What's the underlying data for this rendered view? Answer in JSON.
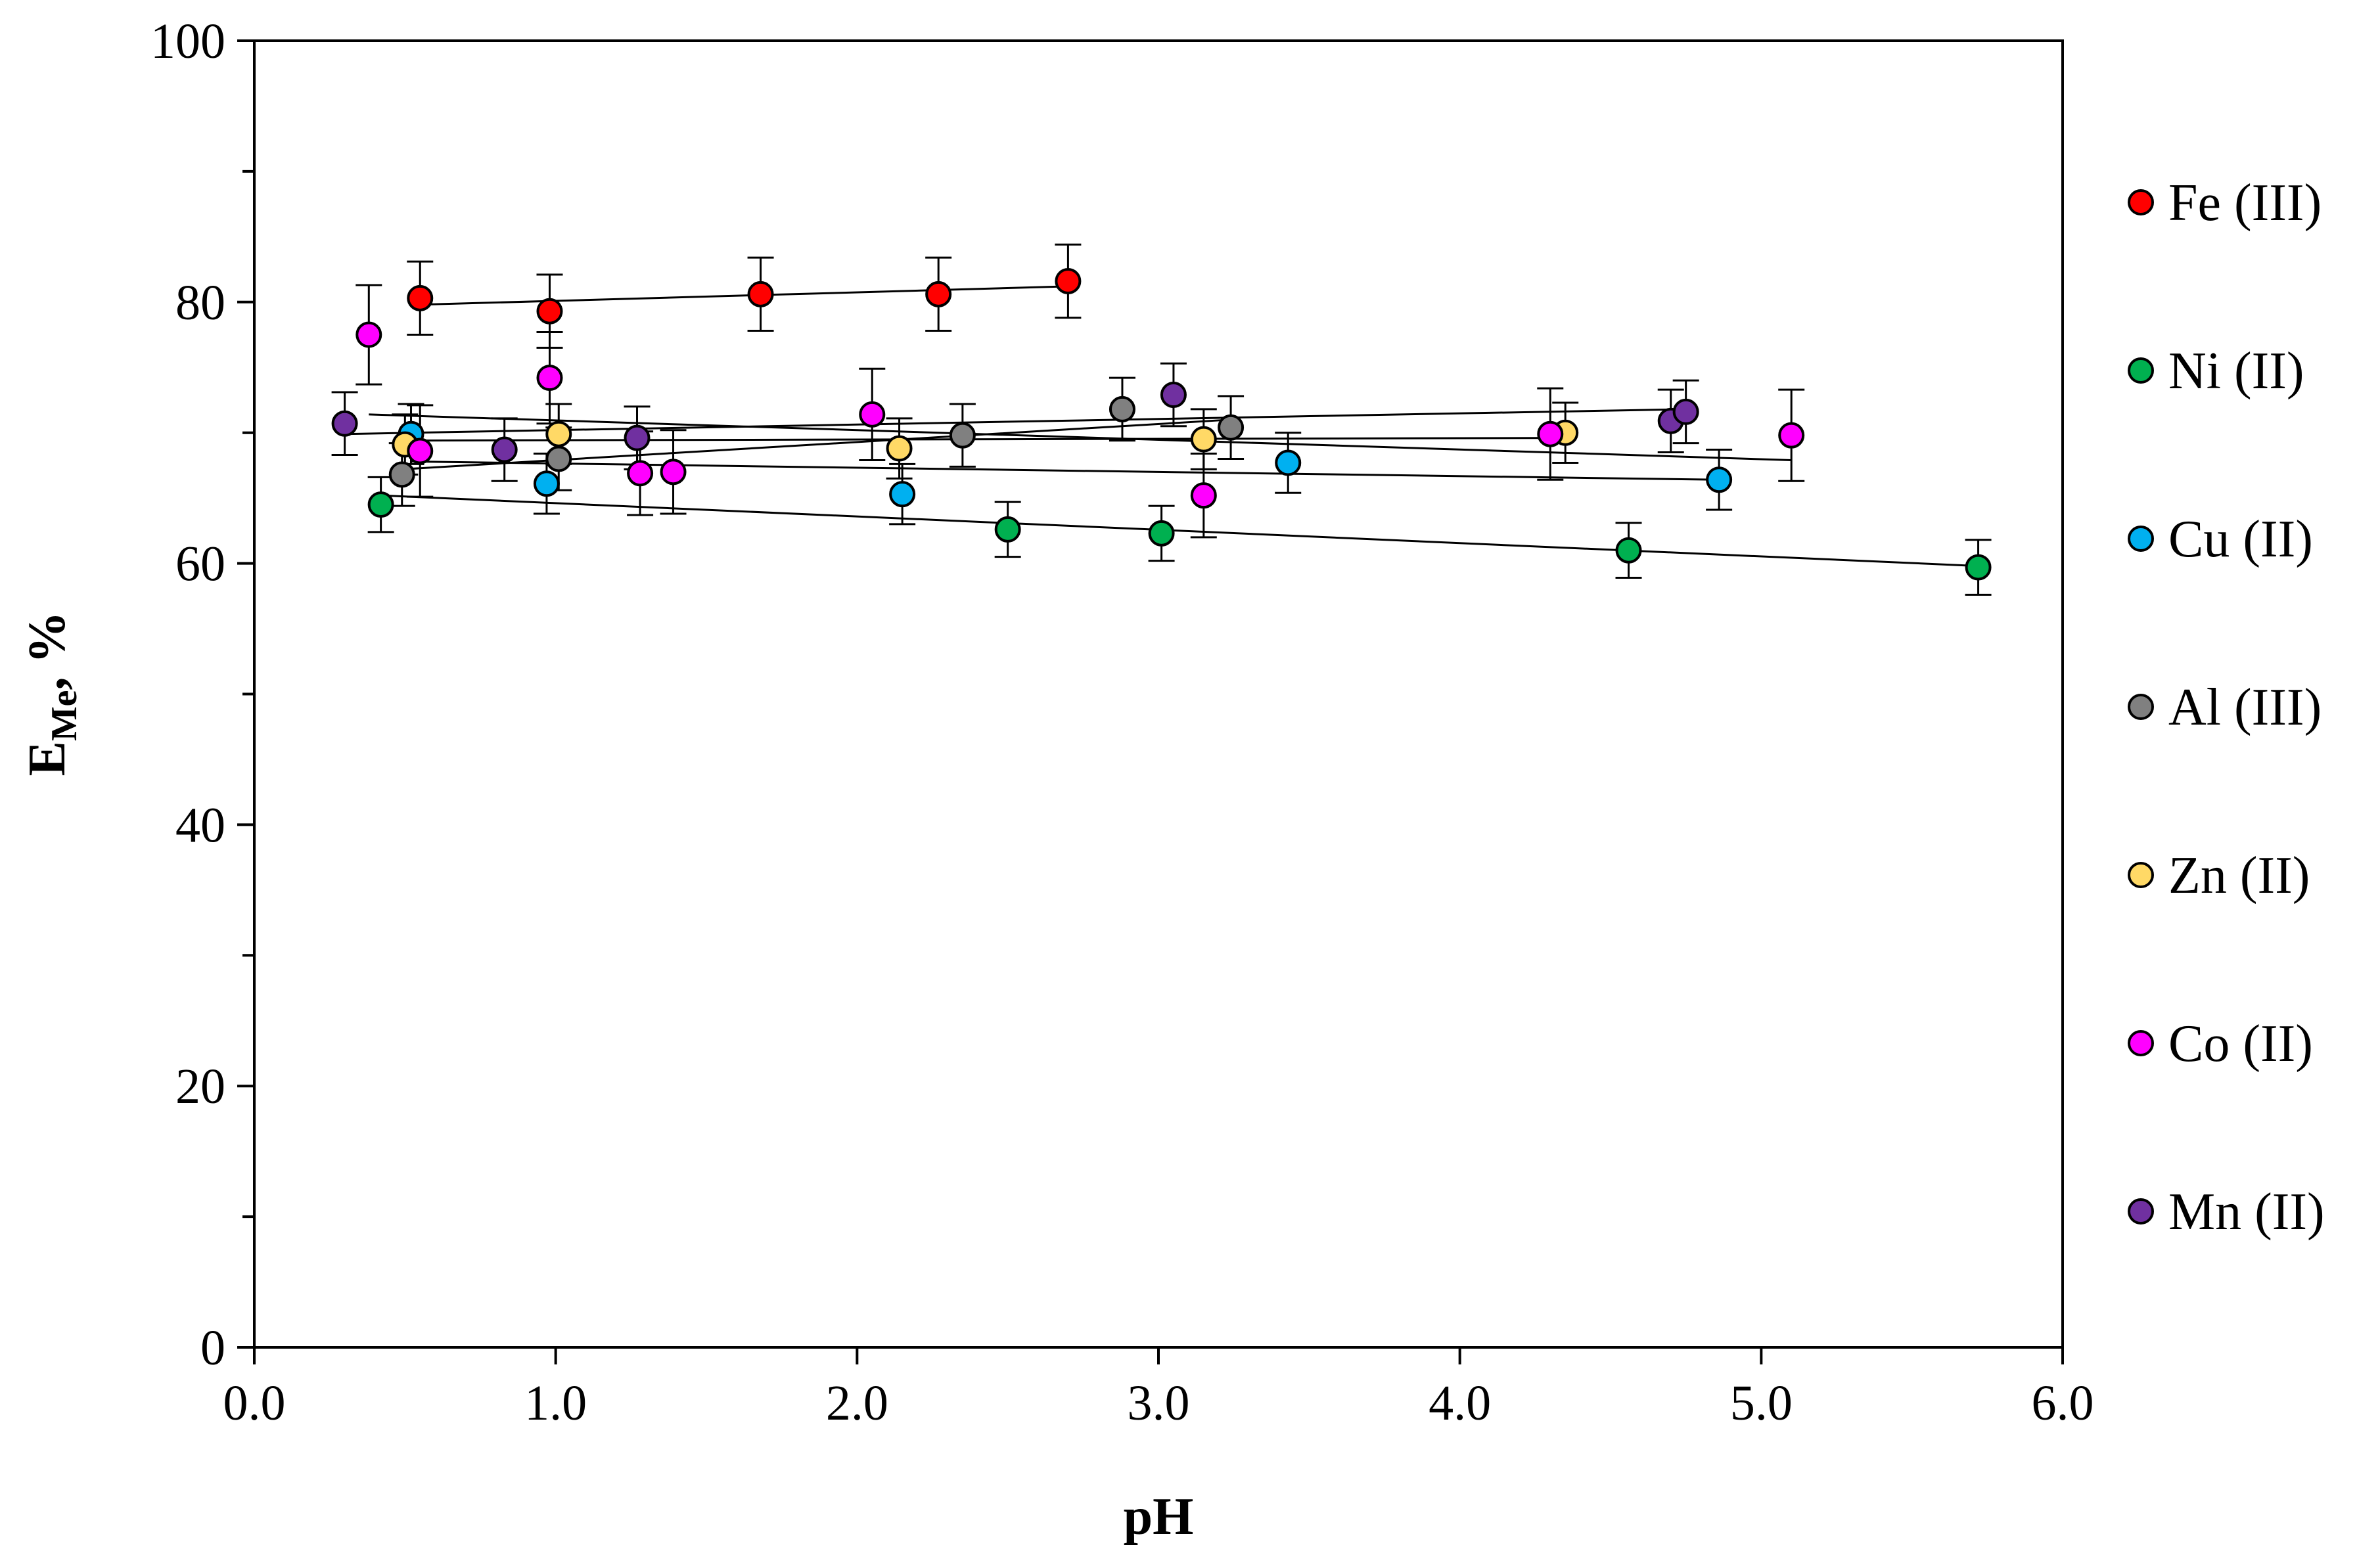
{
  "chart_data": {
    "type": "scatter",
    "title": "",
    "xlabel": "pH",
    "ylabel_main": "E",
    "ylabel_sub": "Me",
    "ylabel_suffix": ", %",
    "xlim": [
      0,
      6
    ],
    "ylim": [
      0,
      100
    ],
    "xticks": [
      0,
      1,
      2,
      3,
      4,
      5,
      6
    ],
    "xtick_labels": [
      "0.0",
      "1.0",
      "2.0",
      "3.0",
      "4.0",
      "5.0",
      "6.0"
    ],
    "yticks": [
      0,
      20,
      40,
      60,
      80,
      100
    ],
    "ytick_labels": [
      "0",
      "20",
      "40",
      "60",
      "80",
      "100"
    ],
    "yminor_step": 10,
    "grid": false,
    "legend_position": "right",
    "series": [
      {
        "name": "Fe (III)",
        "color": "#ff0000",
        "x": [
          0.55,
          0.98,
          1.68,
          2.27,
          2.7
        ],
        "y": [
          80.3,
          79.3,
          80.6,
          80.6,
          81.6
        ],
        "err": [
          2.8,
          2.8,
          2.8,
          2.8,
          2.8
        ],
        "trend": [
          [
            0.55,
            79.8
          ],
          [
            2.7,
            81.2
          ]
        ]
      },
      {
        "name": "Ni (II)",
        "color": "#00b050",
        "x": [
          0.42,
          2.5,
          3.01,
          4.56,
          5.72
        ],
        "y": [
          64.5,
          62.6,
          62.3,
          61.0,
          59.7
        ],
        "err": [
          2.1,
          2.1,
          2.1,
          2.1,
          2.1
        ],
        "trend": [
          [
            0.42,
            65.2
          ],
          [
            5.72,
            59.8
          ]
        ]
      },
      {
        "name": "Cu (II)",
        "color": "#00b0f0",
        "x": [
          0.52,
          0.97,
          2.15,
          3.43,
          4.86
        ],
        "y": [
          69.9,
          66.1,
          65.3,
          67.7,
          66.4
        ],
        "err": [
          2.3,
          2.3,
          2.3,
          2.3,
          2.3
        ],
        "trend": [
          [
            0.52,
            67.8
          ],
          [
            4.86,
            66.4
          ]
        ]
      },
      {
        "name": "Al (III)",
        "color": "#808080",
        "x": [
          0.49,
          1.01,
          2.35,
          2.88,
          3.24
        ],
        "y": [
          66.8,
          68.0,
          69.8,
          71.8,
          70.4
        ],
        "err": [
          2.4,
          2.4,
          2.4,
          2.4,
          2.4
        ],
        "trend": [
          [
            0.49,
            67.2
          ],
          [
            3.24,
            71.0
          ]
        ]
      },
      {
        "name": "Zn (II)",
        "color": "#ffd966",
        "x": [
          0.5,
          1.01,
          2.14,
          3.15,
          4.35
        ],
        "y": [
          69.1,
          69.9,
          68.8,
          69.5,
          70.0
        ],
        "err": [
          2.3,
          2.3,
          2.3,
          2.3,
          2.3
        ],
        "trend": [
          [
            0.5,
            69.4
          ],
          [
            4.35,
            69.6
          ]
        ]
      },
      {
        "name": "Co (II)",
        "color": "#ff00ff",
        "x": [
          0.38,
          0.55,
          0.98,
          1.28,
          1.39,
          2.05,
          3.15,
          4.3,
          5.1
        ],
        "y": [
          77.5,
          68.6,
          74.2,
          66.9,
          67.0,
          71.4,
          65.2,
          69.9,
          69.8
        ],
        "err": [
          3.8,
          3.5,
          3.5,
          3.2,
          3.2,
          3.5,
          3.2,
          3.5,
          3.5
        ],
        "trend": [
          [
            0.38,
            71.4
          ],
          [
            5.1,
            67.9
          ]
        ]
      },
      {
        "name": "Mn (II)",
        "color": "#7030a0",
        "x": [
          0.3,
          0.83,
          1.27,
          3.05,
          4.7,
          4.75
        ],
        "y": [
          70.7,
          68.7,
          69.6,
          72.9,
          70.9,
          71.6
        ],
        "err": [
          2.4,
          2.4,
          2.4,
          2.4,
          2.4,
          2.4
        ],
        "trend": [
          [
            0.3,
            69.9
          ],
          [
            4.75,
            71.8
          ]
        ]
      }
    ]
  }
}
